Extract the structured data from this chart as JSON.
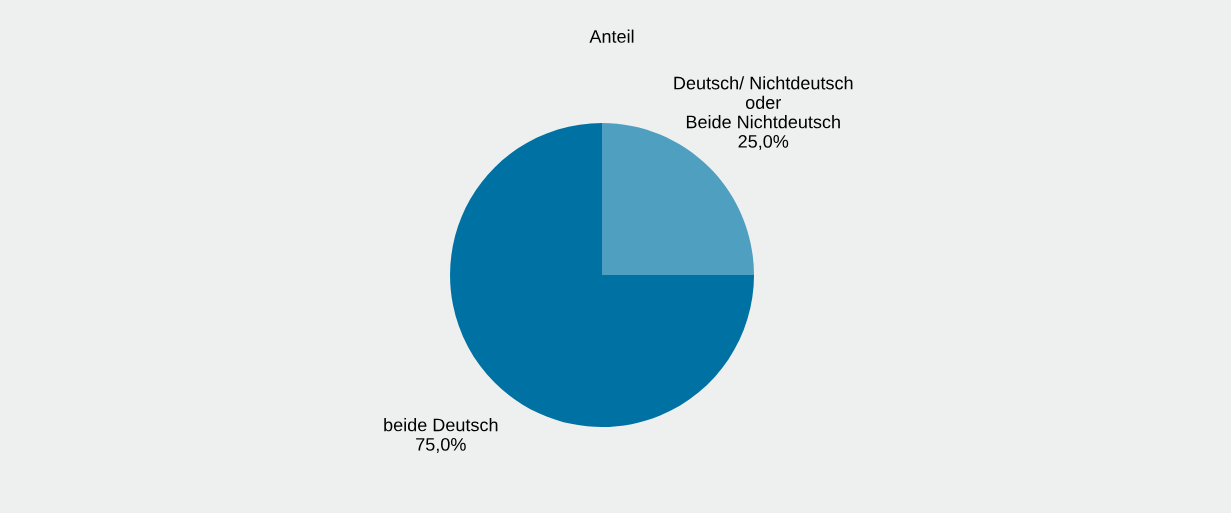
{
  "chart_data": {
    "type": "pie",
    "title": "Anteil",
    "categories": [
      "Deutsch/ Nichtdeutsch\noder\nBeide Nichtdeutsch",
      "beide Deutsch"
    ],
    "values": [
      25.0,
      75.0
    ],
    "value_labels": [
      "25,0%",
      "75,0%"
    ],
    "colors": [
      "#4f9fc0",
      "#0071a3"
    ],
    "legend": false
  }
}
